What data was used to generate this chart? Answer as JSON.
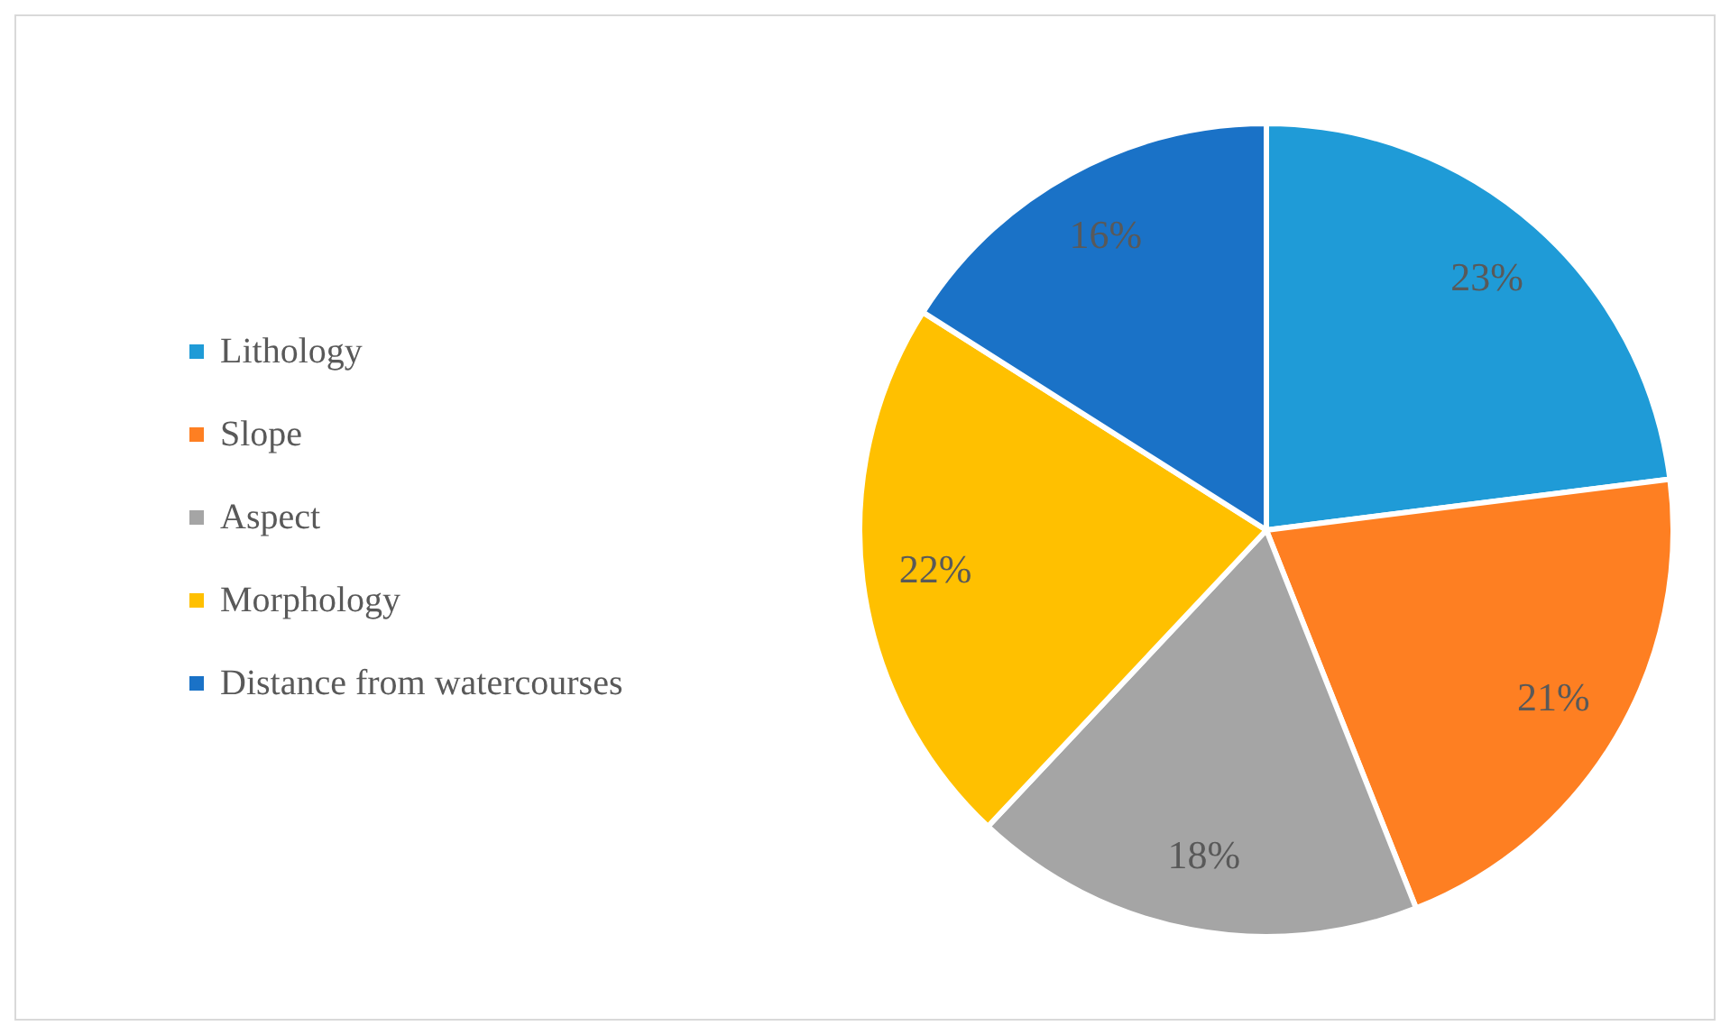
{
  "chart_data": {
    "type": "pie",
    "categories": [
      "Lithology",
      "Slope",
      "Aspect",
      "Morphology",
      "Distance from watercourses"
    ],
    "values": [
      23,
      21,
      18,
      22,
      16
    ],
    "colors": [
      "#1f9bd7",
      "#fe7f22",
      "#a5a5a5",
      "#ffc000",
      "#1a72c7"
    ],
    "value_labels": [
      "23%",
      "21%",
      "18%",
      "22%",
      "16%"
    ],
    "legend": "left"
  }
}
